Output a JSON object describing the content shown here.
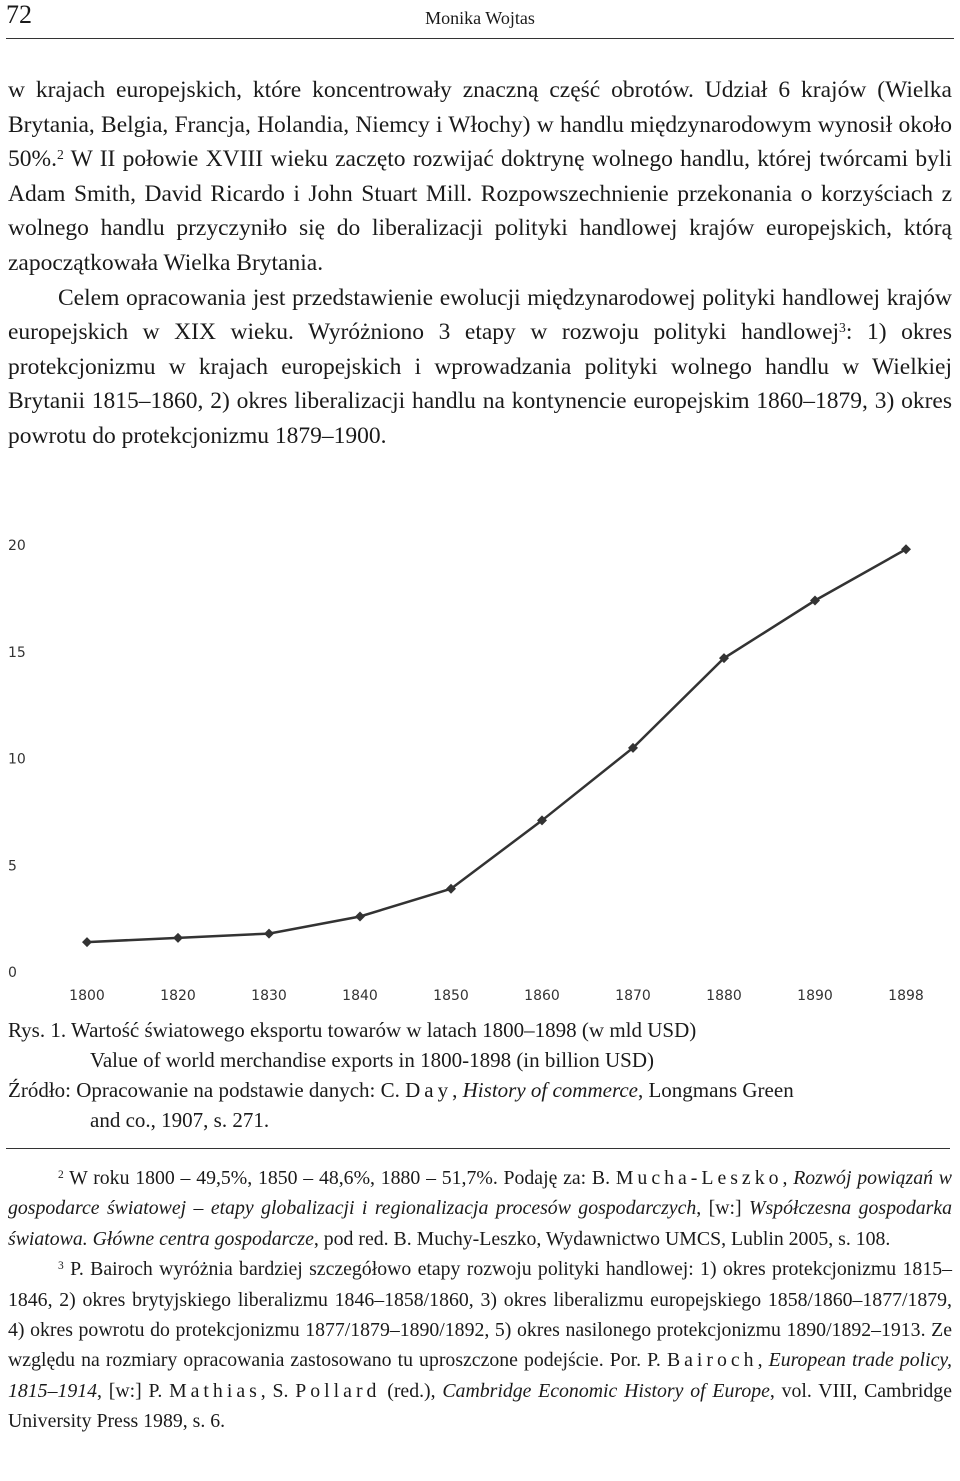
{
  "header": {
    "page_number": "72",
    "running_head": "Monika Wojtas"
  },
  "body": {
    "p1_a": "w krajach europejskich, które koncentrowały znaczną część obrotów. Udział 6 krajów (Wielka Brytania, Belgia, Francja, Holandia, Niemcy i Włochy) w handlu międzynarodowym wynosił około 50%.",
    "p1_fn": "2",
    "p1_b": " W II połowie XVIII wieku zaczęto rozwijać doktrynę wolnego handlu, której twórcami byli Adam Smith, David Ricardo i John Stuart Mill. Rozpowszechnienie przekonania o korzyściach z wolnego handlu przyczyniło się do liberalizacji polityki handlowej krajów europejskich, którą zapoczątkowała Wielka Brytania.",
    "p2_a": "Celem opracowania jest przedstawienie ewolucji międzynarodowej polityki handlowej krajów europejskich w XIX wieku. Wyróżniono 3 etapy w rozwoju polityki handlowej",
    "p2_fn": "3",
    "p2_b": ": 1) okres protekcjonizmu w krajach europejskich i wprowadzania polityki wolnego handlu w Wielkiej Brytanii 1815–1860, 2) okres liberalizacji handlu na kontynencie europejskim 1860–1879, 3) okres powrotu do protekcjonizmu 1879–1900."
  },
  "chart_data": {
    "type": "line",
    "categories": [
      "1800",
      "1820",
      "1830",
      "1840",
      "1850",
      "1860",
      "1870",
      "1880",
      "1890",
      "1898"
    ],
    "values": [
      1.4,
      1.6,
      1.8,
      2.6,
      3.9,
      7.1,
      10.5,
      14.7,
      17.4,
      19.8
    ],
    "ylim": [
      0,
      20
    ],
    "yticks": [
      "0",
      "5",
      "10",
      "15",
      "20"
    ],
    "title": "",
    "xlabel": "",
    "ylabel": "",
    "grid": false,
    "line_color": "#333333"
  },
  "caption": {
    "label": "Rys. 1.",
    "title_pl": " Wartość światowego eksportu towarów w latach 1800–1898 (w mld USD)",
    "title_en": "Value of world merchandise exports in 1800-1898 (in billion USD)",
    "source_a": "Źródło: Opracowanie na podstawie danych: C. ",
    "source_author": "Day",
    "source_b": ", ",
    "source_title": "History of commerce",
    "source_c": ", Longmans Green",
    "source_d": "and co., 1907, s. 271."
  },
  "footnotes": {
    "fn2_num": "2",
    "fn2_a": " W roku 1800 – 49,5%, 1850 – 48,6%, 1880 – 51,7%. Podaję za: B. ",
    "fn2_author": "Mucha-Leszko",
    "fn2_b": ", ",
    "fn2_title": "Rozwój powiązań w gospodarce światowej – etapy globalizacji i regionalizacja procesów gospodarczych",
    "fn2_c": ", [w:] ",
    "fn2_book": "Współczesna gospodarka światowa. Główne centra gospodarcze",
    "fn2_d": ", pod red. B. Muchy-Leszko, Wydawnictwo UMCS, Lublin 2005, s. 108.",
    "fn3_num": "3",
    "fn3_a": " P. Bairoch wyróżnia bardziej szczegółowo etapy rozwoju polityki handlowej: 1) okres protekcjonizmu 1815–1846, 2) okres brytyjskiego liberalizmu 1846–1858/1860, 3) okres liberalizmu europejskiego 1858/1860–1877/1879, 4) okres powrotu do protekcjonizmu 1877/1879–1890/1892, 5) okres nasilonego protekcjonizmu 1890/1892–1913. Ze względu na rozmiary opracowania zastosowano tu uproszczone podejście. Por. P. ",
    "fn3_author1": "Bairoch",
    "fn3_b": ", ",
    "fn3_title": "European trade policy, 1815–1914",
    "fn3_c": ", [w:] P. ",
    "fn3_author2": "Mathias",
    "fn3_d": ", S. ",
    "fn3_author3": "Pollard",
    "fn3_e": " (red.), ",
    "fn3_book": "Cambridge Economic History of Europe",
    "fn3_f": ", vol. VIII, Cambridge University Press 1989, s. 6."
  }
}
